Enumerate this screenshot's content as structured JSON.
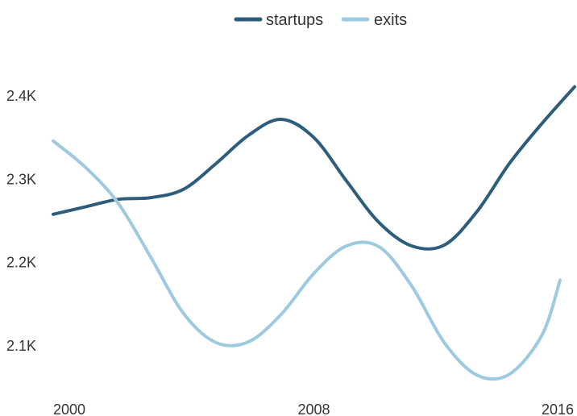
{
  "chart_data": {
    "type": "line",
    "x": [
      2000,
      2001,
      2002,
      2003,
      2004,
      2005,
      2006,
      2007,
      2008,
      2009,
      2010,
      2011,
      2012,
      2013,
      2014,
      2015,
      2016
    ],
    "series": [
      {
        "name": "startups",
        "color": "#2c5d7c",
        "values": [
          2257,
          2266,
          2275,
          2277,
          2287,
          2318,
          2352,
          2371,
          2349,
          2297,
          2247,
          2219,
          2220,
          2260,
          2318,
          2366,
          2410
        ]
      },
      {
        "name": "exits",
        "color": "#9ecae1",
        "values": [
          2345,
          2313,
          2270,
          2205,
          2138,
          2103,
          2104,
          2137,
          2186,
          2219,
          2218,
          2171,
          2103,
          2064,
          2065,
          2112,
          2178
        ]
      }
    ],
    "y_ticks": [
      2100,
      2200,
      2300,
      2400
    ],
    "y_tick_labels": [
      "2.1K",
      "2.2K",
      "2.3K",
      "2.4K"
    ],
    "x_ticks": [
      2000,
      2008,
      2016
    ],
    "x_tick_labels": [
      "2000",
      "2008",
      "2016"
    ],
    "ylim": [
      2040,
      2440
    ],
    "xlim": [
      2000,
      2016
    ],
    "legend_position": "top-center",
    "grid": false
  }
}
